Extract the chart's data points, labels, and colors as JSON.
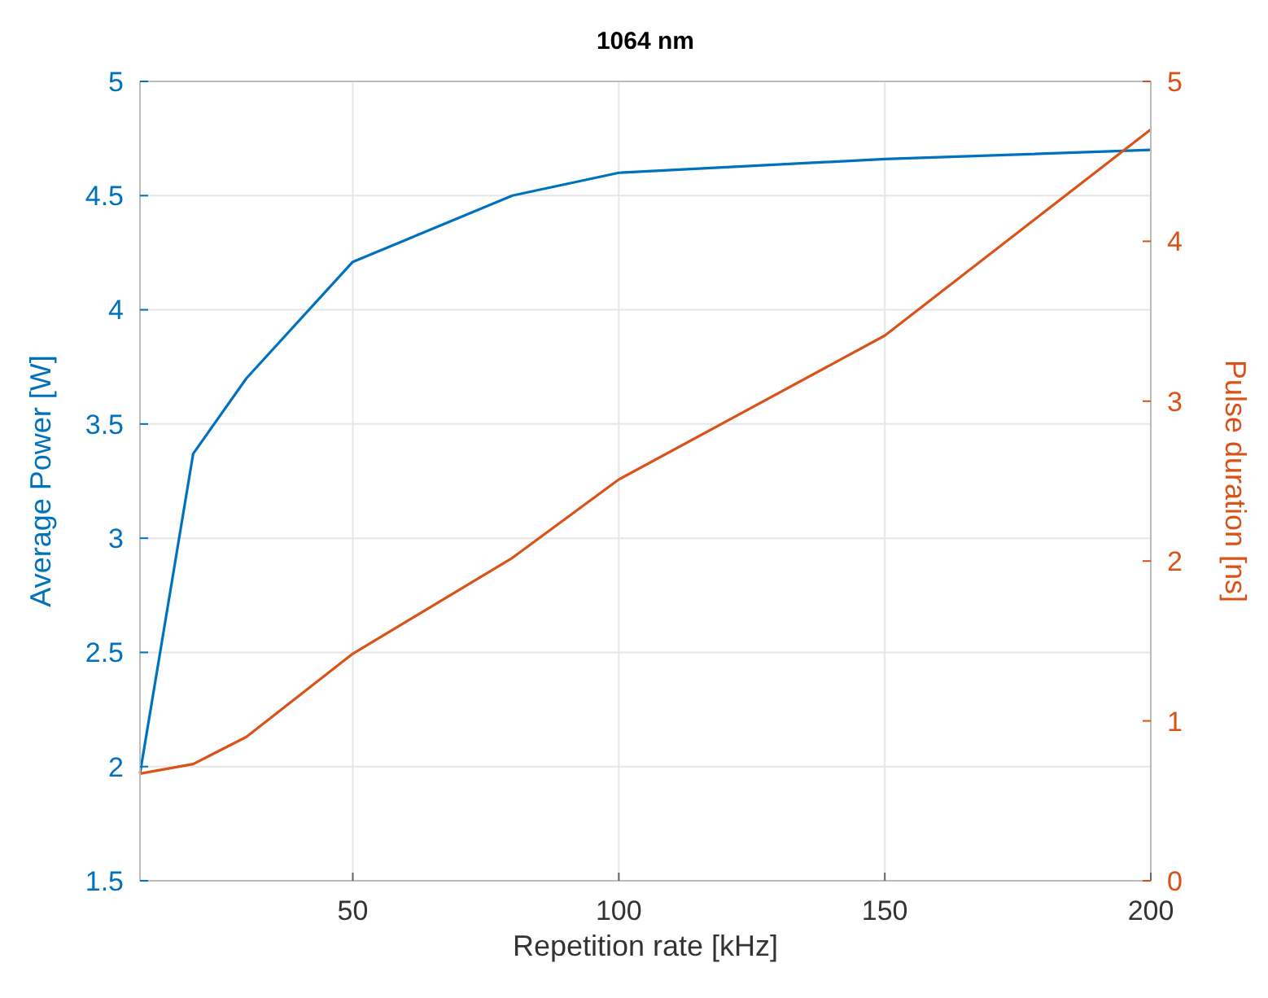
{
  "chart_data": {
    "type": "line",
    "title": "1064 nm",
    "xlabel": "Repetition rate [kHz]",
    "ylabel": "Average Power [W]",
    "y2label": "Pulse duration [ns]",
    "x": [
      10,
      20,
      30,
      50,
      80,
      100,
      150,
      200
    ],
    "series": [
      {
        "color": "#0072bd",
        "values": [
          1.97,
          3.37,
          3.7,
          4.21,
          4.5,
          4.6,
          4.66,
          4.7
        ]
      },
      {
        "color": "#d95319",
        "axis": "y2",
        "values": [
          0.67,
          0.73,
          0.9,
          1.42,
          2.02,
          2.51,
          3.41,
          4.7
        ]
      }
    ],
    "xlim": [
      10,
      200
    ],
    "xticks": [
      50,
      100,
      150,
      200
    ],
    "ylim": [
      1.5,
      5
    ],
    "yticks": [
      1.5,
      2,
      2.5,
      3,
      3.5,
      4,
      4.5,
      5
    ],
    "y2lim": [
      0,
      5
    ],
    "y2ticks": [
      0,
      1,
      2,
      3,
      4,
      5
    ],
    "grid": true,
    "marker": "none",
    "line_style": "solid"
  }
}
